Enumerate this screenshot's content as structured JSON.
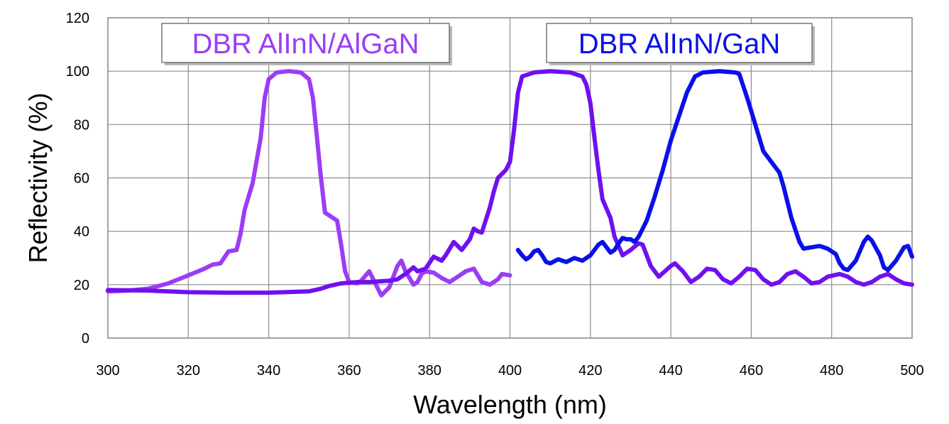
{
  "chart_data": {
    "type": "line",
    "xlabel": "Wavelength (nm)",
    "ylabel": "Reflectivity (%)",
    "xlim": [
      300,
      500
    ],
    "ylim": [
      0,
      120
    ],
    "x_ticks": [
      300,
      320,
      340,
      360,
      380,
      400,
      420,
      440,
      460,
      480,
      500
    ],
    "y_ticks": [
      0,
      20,
      40,
      60,
      80,
      100,
      120
    ],
    "grid": true,
    "colors": {
      "light_violet": "#9B3DF5",
      "violet": "#7010F0",
      "blue": "#0A10E8"
    },
    "labels": [
      {
        "text": "DBR AlInN/AlGaN",
        "color": "#9B3DF5"
      },
      {
        "text": "DBR AlInN/GaN",
        "color": "#0A10E8"
      }
    ],
    "series": [
      {
        "color": "#9B3DF5",
        "points": [
          [
            300,
            17.5
          ],
          [
            305,
            17.8
          ],
          [
            310,
            18.5
          ],
          [
            315,
            20.5
          ],
          [
            320,
            23.5
          ],
          [
            324,
            26
          ],
          [
            326,
            27.5
          ],
          [
            328,
            28
          ],
          [
            330,
            32.5
          ],
          [
            332,
            33
          ],
          [
            333,
            39
          ],
          [
            334,
            48
          ],
          [
            336,
            58
          ],
          [
            338,
            75
          ],
          [
            339,
            90
          ],
          [
            340,
            97
          ],
          [
            342,
            99.5
          ],
          [
            345,
            100
          ],
          [
            348,
            99.5
          ],
          [
            350,
            97
          ],
          [
            351,
            90
          ],
          [
            352,
            75
          ],
          [
            353,
            60
          ],
          [
            354,
            47
          ],
          [
            356,
            45
          ],
          [
            357,
            44
          ],
          [
            358,
            35
          ],
          [
            359,
            25
          ],
          [
            360,
            21
          ],
          [
            362,
            20.5
          ],
          [
            363,
            21.5
          ],
          [
            365,
            25
          ],
          [
            366,
            22
          ],
          [
            368,
            16
          ],
          [
            370,
            19
          ],
          [
            372,
            27
          ],
          [
            373,
            29
          ],
          [
            374,
            25
          ],
          [
            376,
            20
          ],
          [
            377,
            21
          ],
          [
            378,
            24
          ],
          [
            379,
            25
          ],
          [
            381,
            24.5
          ],
          [
            383,
            22.5
          ],
          [
            385,
            21
          ],
          [
            387,
            23
          ],
          [
            389,
            25
          ],
          [
            391,
            26
          ],
          [
            393,
            21
          ],
          [
            395,
            20
          ],
          [
            397,
            22
          ],
          [
            398,
            24
          ],
          [
            400,
            23.5
          ]
        ]
      },
      {
        "color": "#7010F0",
        "points": [
          [
            300,
            18
          ],
          [
            310,
            17.8
          ],
          [
            320,
            17.2
          ],
          [
            330,
            17
          ],
          [
            340,
            17
          ],
          [
            350,
            17.5
          ],
          [
            353,
            18.5
          ],
          [
            355,
            19.5
          ],
          [
            358,
            20.5
          ],
          [
            362,
            21
          ],
          [
            365,
            21
          ],
          [
            370,
            21.5
          ],
          [
            372,
            22
          ],
          [
            374,
            24
          ],
          [
            376,
            26.5
          ],
          [
            377,
            25
          ],
          [
            379,
            26
          ],
          [
            381,
            30.5
          ],
          [
            383,
            29
          ],
          [
            384,
            31
          ],
          [
            386,
            36
          ],
          [
            388,
            33
          ],
          [
            390,
            37
          ],
          [
            391,
            41
          ],
          [
            392,
            40
          ],
          [
            393,
            39.5
          ],
          [
            395,
            49
          ],
          [
            396,
            55
          ],
          [
            397,
            60
          ],
          [
            399,
            63
          ],
          [
            400,
            66
          ],
          [
            401,
            78
          ],
          [
            402,
            92
          ],
          [
            403,
            98
          ],
          [
            406,
            99.5
          ],
          [
            410,
            100
          ],
          [
            415,
            99.5
          ],
          [
            418,
            98
          ],
          [
            419,
            95
          ],
          [
            420,
            88
          ],
          [
            421,
            75
          ],
          [
            422,
            63
          ],
          [
            423,
            52
          ],
          [
            425,
            45
          ],
          [
            426,
            38
          ],
          [
            428,
            31
          ],
          [
            430,
            33
          ],
          [
            432,
            35.5
          ],
          [
            433,
            35
          ],
          [
            435,
            27
          ],
          [
            437,
            23
          ],
          [
            440,
            27
          ],
          [
            441,
            28
          ],
          [
            443,
            25
          ],
          [
            445,
            21
          ],
          [
            447,
            23
          ],
          [
            449,
            26
          ],
          [
            451,
            25.5
          ],
          [
            453,
            22
          ],
          [
            455,
            20.5
          ],
          [
            457,
            23
          ],
          [
            459,
            26
          ],
          [
            461,
            25.5
          ],
          [
            463,
            22
          ],
          [
            465,
            20
          ],
          [
            467,
            21
          ],
          [
            469,
            24
          ],
          [
            471,
            25
          ],
          [
            473,
            23
          ],
          [
            475,
            20.5
          ],
          [
            477,
            21
          ],
          [
            479,
            23
          ],
          [
            482,
            24
          ],
          [
            484,
            23
          ],
          [
            486,
            21
          ],
          [
            488,
            20
          ],
          [
            490,
            21
          ],
          [
            492,
            23
          ],
          [
            494,
            24
          ],
          [
            496,
            22
          ],
          [
            498,
            20.5
          ],
          [
            500,
            20
          ]
        ]
      },
      {
        "color": "#0A10E8",
        "points": [
          [
            402,
            33
          ],
          [
            403,
            31
          ],
          [
            404,
            29.5
          ],
          [
            405,
            30.5
          ],
          [
            406,
            32.5
          ],
          [
            407,
            33
          ],
          [
            408,
            31
          ],
          [
            409,
            28.5
          ],
          [
            410,
            28
          ],
          [
            412,
            29.5
          ],
          [
            414,
            28.5
          ],
          [
            416,
            30
          ],
          [
            418,
            29
          ],
          [
            420,
            31
          ],
          [
            422,
            35
          ],
          [
            423,
            36
          ],
          [
            424,
            34
          ],
          [
            425,
            32
          ],
          [
            426,
            33
          ],
          [
            427,
            35.5
          ],
          [
            428,
            37.5
          ],
          [
            429,
            37
          ],
          [
            430,
            37
          ],
          [
            431,
            36
          ],
          [
            432,
            38
          ],
          [
            434,
            44
          ],
          [
            436,
            53
          ],
          [
            438,
            63
          ],
          [
            440,
            74
          ],
          [
            442,
            83
          ],
          [
            444,
            92
          ],
          [
            446,
            98
          ],
          [
            448,
            99.5
          ],
          [
            452,
            100
          ],
          [
            456,
            99.5
          ],
          [
            457,
            99
          ],
          [
            459,
            90
          ],
          [
            461,
            80
          ],
          [
            463,
            70
          ],
          [
            465,
            66
          ],
          [
            466,
            64
          ],
          [
            467,
            62
          ],
          [
            468,
            57
          ],
          [
            470,
            45
          ],
          [
            472,
            36
          ],
          [
            473,
            33.5
          ],
          [
            475,
            34
          ],
          [
            477,
            34.5
          ],
          [
            479,
            33.5
          ],
          [
            481,
            31.5
          ],
          [
            482,
            28
          ],
          [
            483,
            26
          ],
          [
            484,
            25.5
          ],
          [
            486,
            29
          ],
          [
            488,
            36
          ],
          [
            489,
            38
          ],
          [
            490,
            36.5
          ],
          [
            492,
            31
          ],
          [
            493,
            26.5
          ],
          [
            494,
            25.5
          ],
          [
            496,
            29
          ],
          [
            498,
            34
          ],
          [
            499,
            34.5
          ],
          [
            500,
            30.5
          ]
        ]
      }
    ]
  }
}
